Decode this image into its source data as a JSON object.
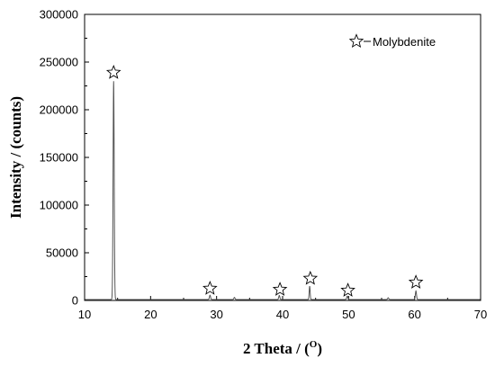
{
  "chart_data": {
    "type": "line",
    "title": "",
    "xlabel": "2 Theta / (",
    "xlabel_superscript": "O",
    "xlabel_suffix": ")",
    "ylabel": "Intensity / (counts)",
    "xlim": [
      10,
      70
    ],
    "ylim": [
      0,
      300000
    ],
    "x_ticks": [
      10,
      20,
      30,
      40,
      50,
      60,
      70
    ],
    "y_ticks": [
      0,
      50000,
      100000,
      150000,
      200000,
      250000,
      300000
    ],
    "x_tick_labels": [
      "10",
      "20",
      "30",
      "40",
      "50",
      "60",
      "70"
    ],
    "y_tick_labels": [
      "0",
      "50000",
      "100000",
      "150000",
      "200000",
      "250000",
      "300000"
    ],
    "grid": false,
    "legend_position": "top-right",
    "line_color": "#555555",
    "series": [
      {
        "name": "",
        "baseline": 1000,
        "peaks": [
          {
            "x": 14.4,
            "y": 229000,
            "width": 0.12
          },
          {
            "x": 29.0,
            "y": 4500,
            "width": 0.12
          },
          {
            "x": 32.7,
            "y": 2200,
            "width": 0.12
          },
          {
            "x": 39.5,
            "y": 4200,
            "width": 0.12
          },
          {
            "x": 44.1,
            "y": 14000,
            "width": 0.1
          },
          {
            "x": 49.8,
            "y": 3500,
            "width": 0.12
          },
          {
            "x": 56.0,
            "y": 1800,
            "width": 0.12
          },
          {
            "x": 60.2,
            "y": 9000,
            "width": 0.12
          }
        ]
      }
    ],
    "markers": [
      {
        "label": "Molybdenite",
        "symbol": "star",
        "x": 14.4,
        "y": 239000
      },
      {
        "label": "Molybdenite",
        "symbol": "star",
        "x": 29.0,
        "y": 12500
      },
      {
        "label": "Molybdenite",
        "symbol": "star",
        "x": 39.6,
        "y": 11500
      },
      {
        "label": "Molybdenite",
        "symbol": "star",
        "x": 44.2,
        "y": 23000
      },
      {
        "label": "Molybdenite",
        "symbol": "star",
        "x": 49.9,
        "y": 10500
      },
      {
        "label": "Molybdenite",
        "symbol": "star",
        "x": 60.2,
        "y": 19000
      }
    ],
    "legend": [
      {
        "label": "Molybdenite",
        "symbol": "star"
      }
    ]
  }
}
